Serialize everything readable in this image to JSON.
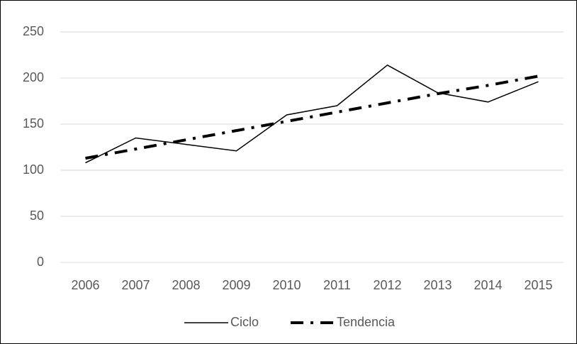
{
  "chart_data": {
    "type": "line",
    "categories": [
      "2006",
      "2007",
      "2008",
      "2009",
      "2010",
      "2011",
      "2012",
      "2013",
      "2014",
      "2015"
    ],
    "series": [
      {
        "name": "Ciclo",
        "color": "#000000",
        "line_style": "solid",
        "values": [
          108,
          135,
          128,
          121,
          160,
          170,
          214,
          184,
          174,
          196
        ]
      },
      {
        "name": "Tendencia",
        "color": "#000000",
        "line_style": "dash-dot",
        "values": [
          113,
          123,
          133,
          143,
          153,
          163,
          173,
          183,
          192,
          202
        ]
      }
    ],
    "ylim": [
      0,
      250
    ],
    "yticks": [
      0,
      50,
      100,
      150,
      200,
      250
    ],
    "grid": true,
    "legend": "bottom"
  }
}
